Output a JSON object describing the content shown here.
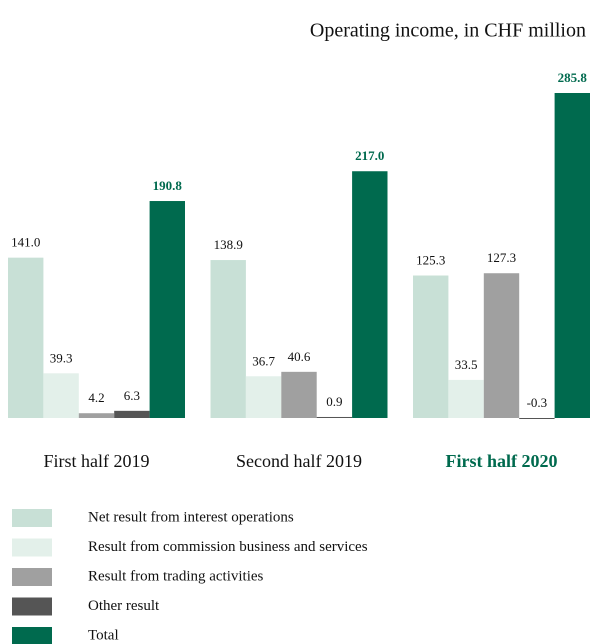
{
  "chart_data": {
    "type": "bar",
    "title": "Operating income, in CHF million",
    "categories": [
      "First half 2019",
      "Second half 2019",
      "First half 2020"
    ],
    "series": [
      {
        "name": "Net result from interest operations",
        "color": "#c8e0d6",
        "values": [
          141.0,
          138.9,
          125.3
        ],
        "value_labels": [
          "141.0",
          "138.9",
          "125.3"
        ]
      },
      {
        "name": "Result from commission business and services",
        "color": "#e3f0ea",
        "values": [
          39.3,
          36.7,
          33.5
        ],
        "value_labels": [
          "39.3",
          "36.7",
          "33.5"
        ]
      },
      {
        "name": "Result from trading activities",
        "color": "#a0a0a0",
        "values": [
          4.2,
          40.6,
          127.3
        ],
        "value_labels": [
          "4.2",
          "40.6",
          "127.3"
        ]
      },
      {
        "name": "Other result",
        "color": "#555555",
        "values": [
          6.3,
          0.9,
          -0.3
        ],
        "value_labels": [
          "6.3",
          "0.9",
          "-0.3"
        ]
      },
      {
        "name": "Total",
        "color": "#006a4e",
        "values": [
          190.8,
          217.0,
          285.8
        ],
        "value_labels": [
          "190.8",
          "217.0",
          "285.8"
        ]
      }
    ]
  }
}
